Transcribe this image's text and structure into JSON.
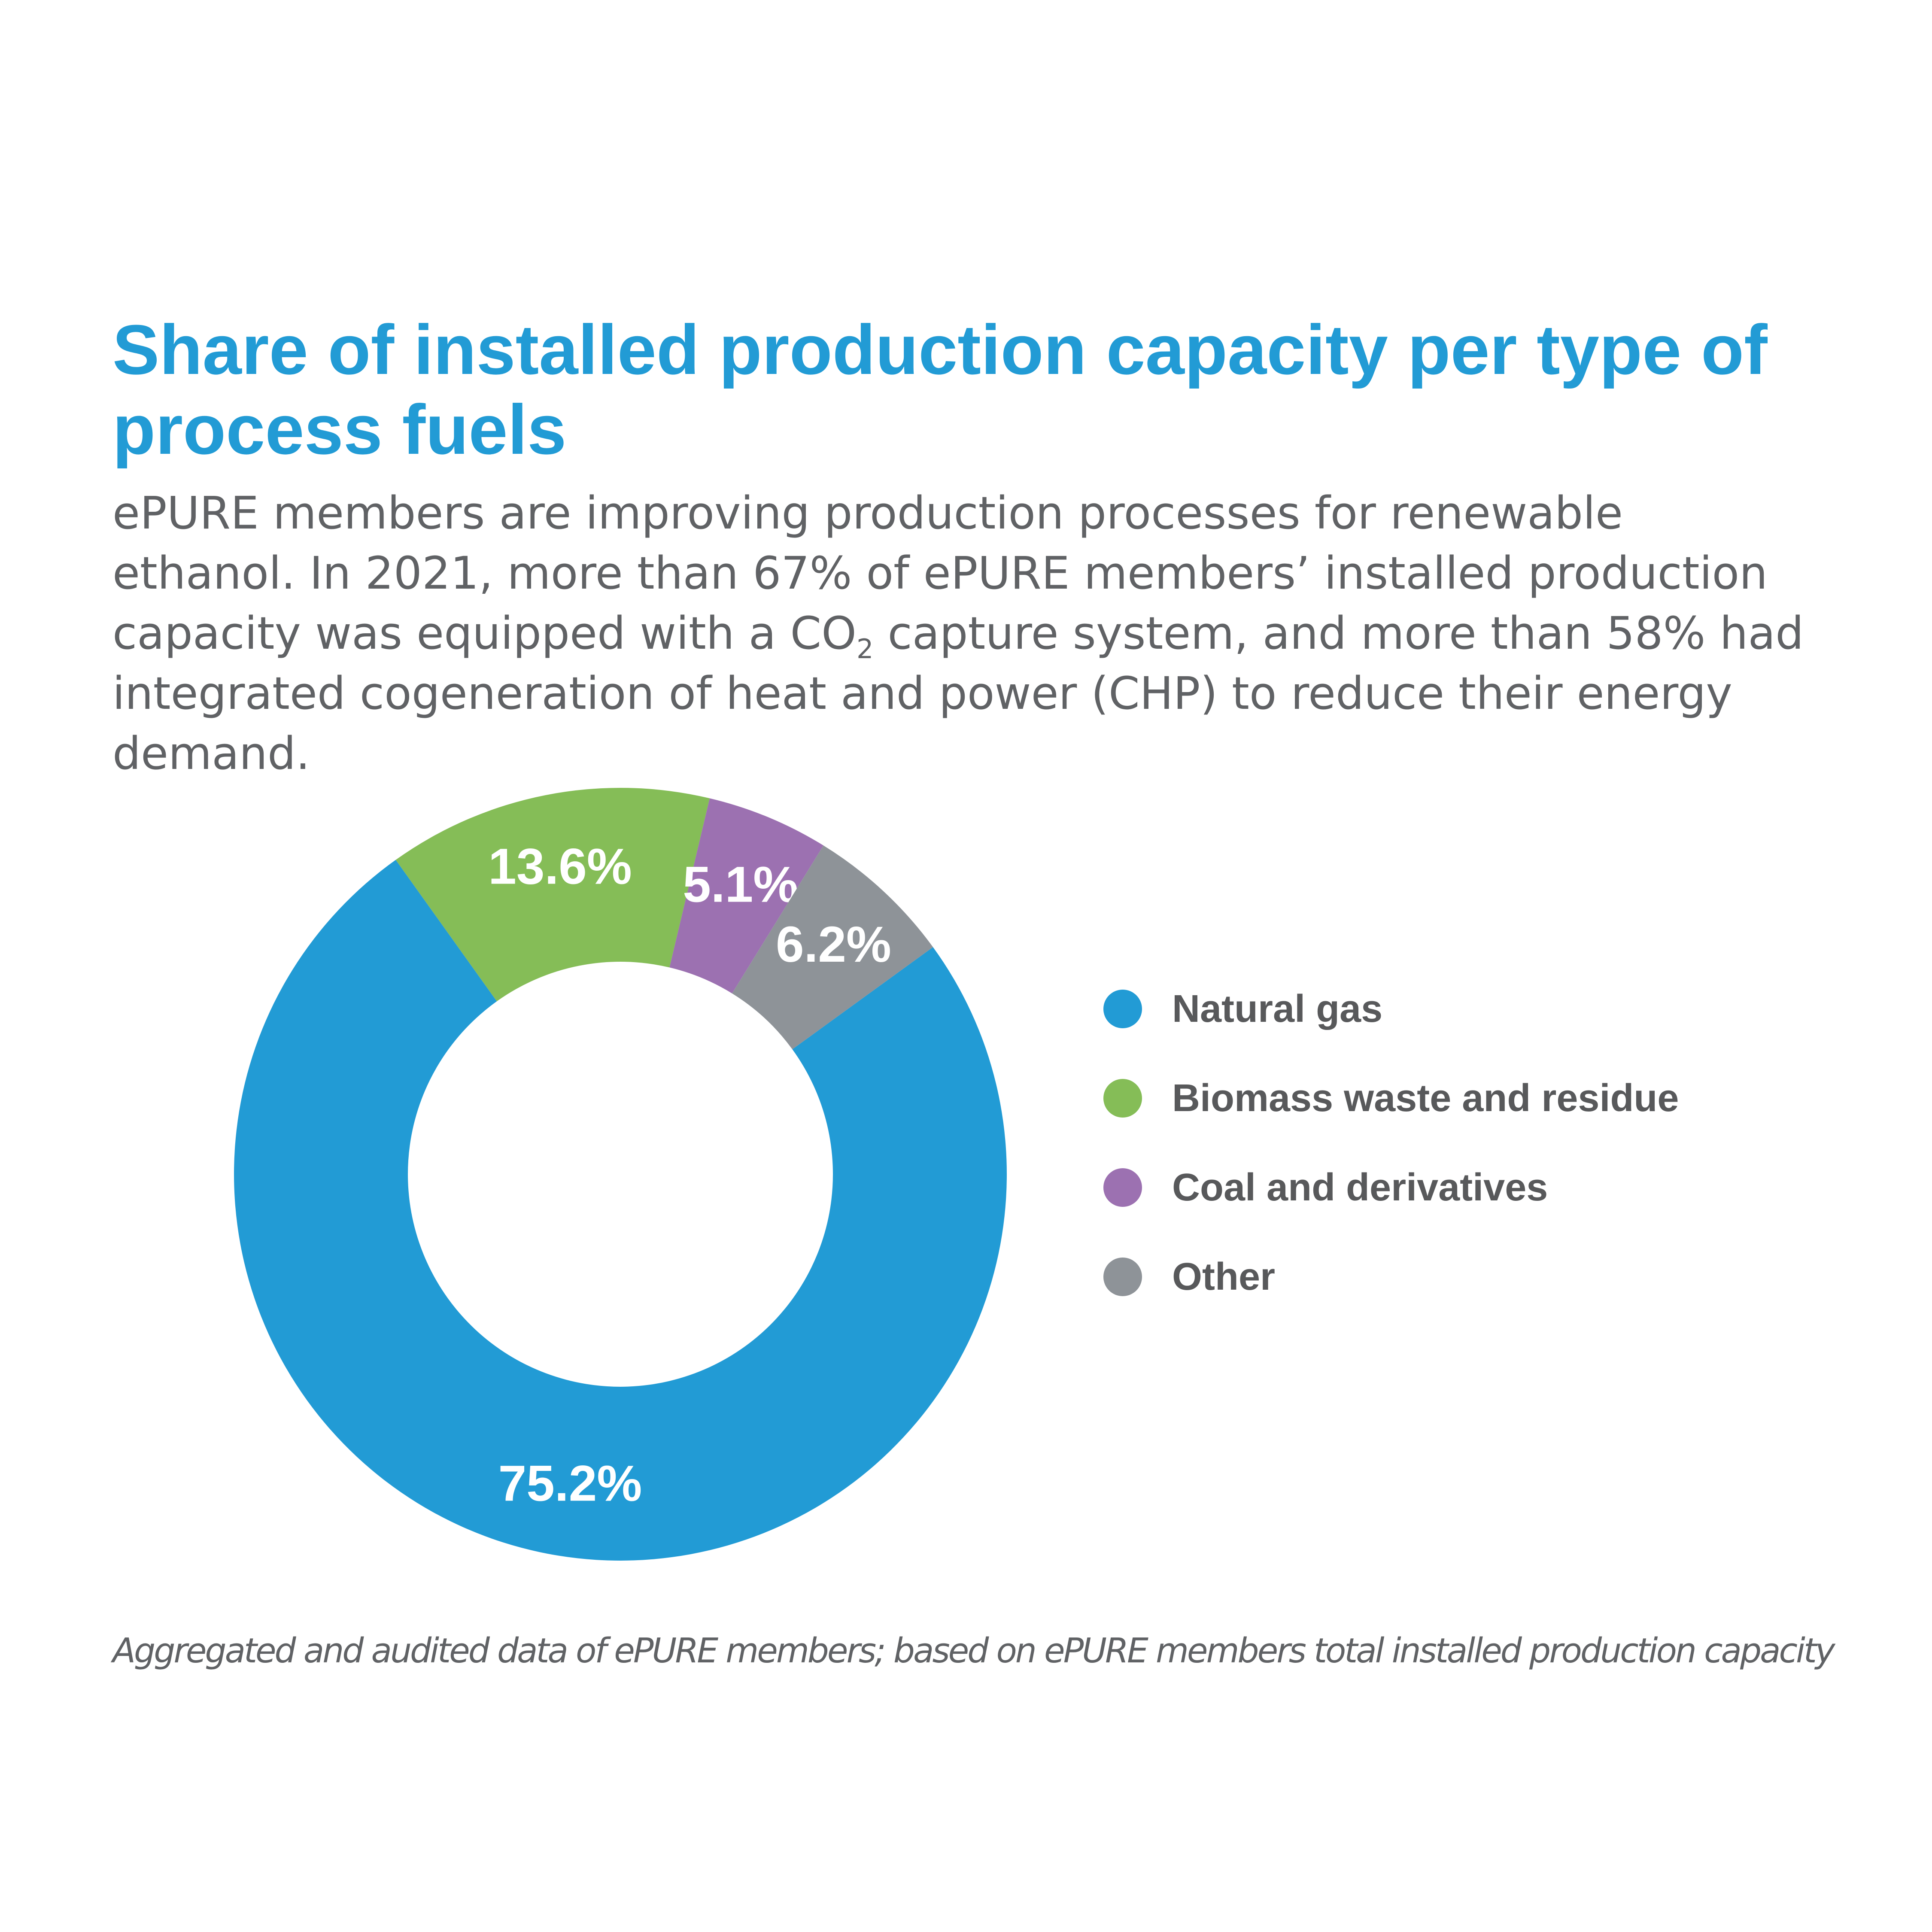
{
  "title": "Share of installed production capacity per type of process fuels",
  "subtitle": {
    "before_sub": "ePURE members are improving production processes for renewable ethanol. In 2021, more than 67% of ePURE members’ installed production capacity was equipped with a CO",
    "sub": "2",
    "after_sub": " capture system, and more than 58% had integrated cogeneration of heat and power (CHP) to reduce their energy demand."
  },
  "footnote": "Aggregated and audited data of ePURE members; based on ePURE members total installed production capacity",
  "chart_data": {
    "type": "pie",
    "variant": "donut",
    "title": "Share of installed production capacity per type of process fuels",
    "slices": [
      {
        "name": "Natural gas",
        "value": 75.2,
        "label": "75.2%",
        "color": "#229bd5"
      },
      {
        "name": "Biomass waste and residue",
        "value": 13.6,
        "label": "13.6%",
        "color": "#85bd57"
      },
      {
        "name": "Coal and derivatives",
        "value": 5.1,
        "label": "5.1%",
        "color": "#9c71b1"
      },
      {
        "name": "Other",
        "value": 6.2,
        "label": "6.2%",
        "color": "#8e9398"
      }
    ],
    "legend_position": "right"
  }
}
